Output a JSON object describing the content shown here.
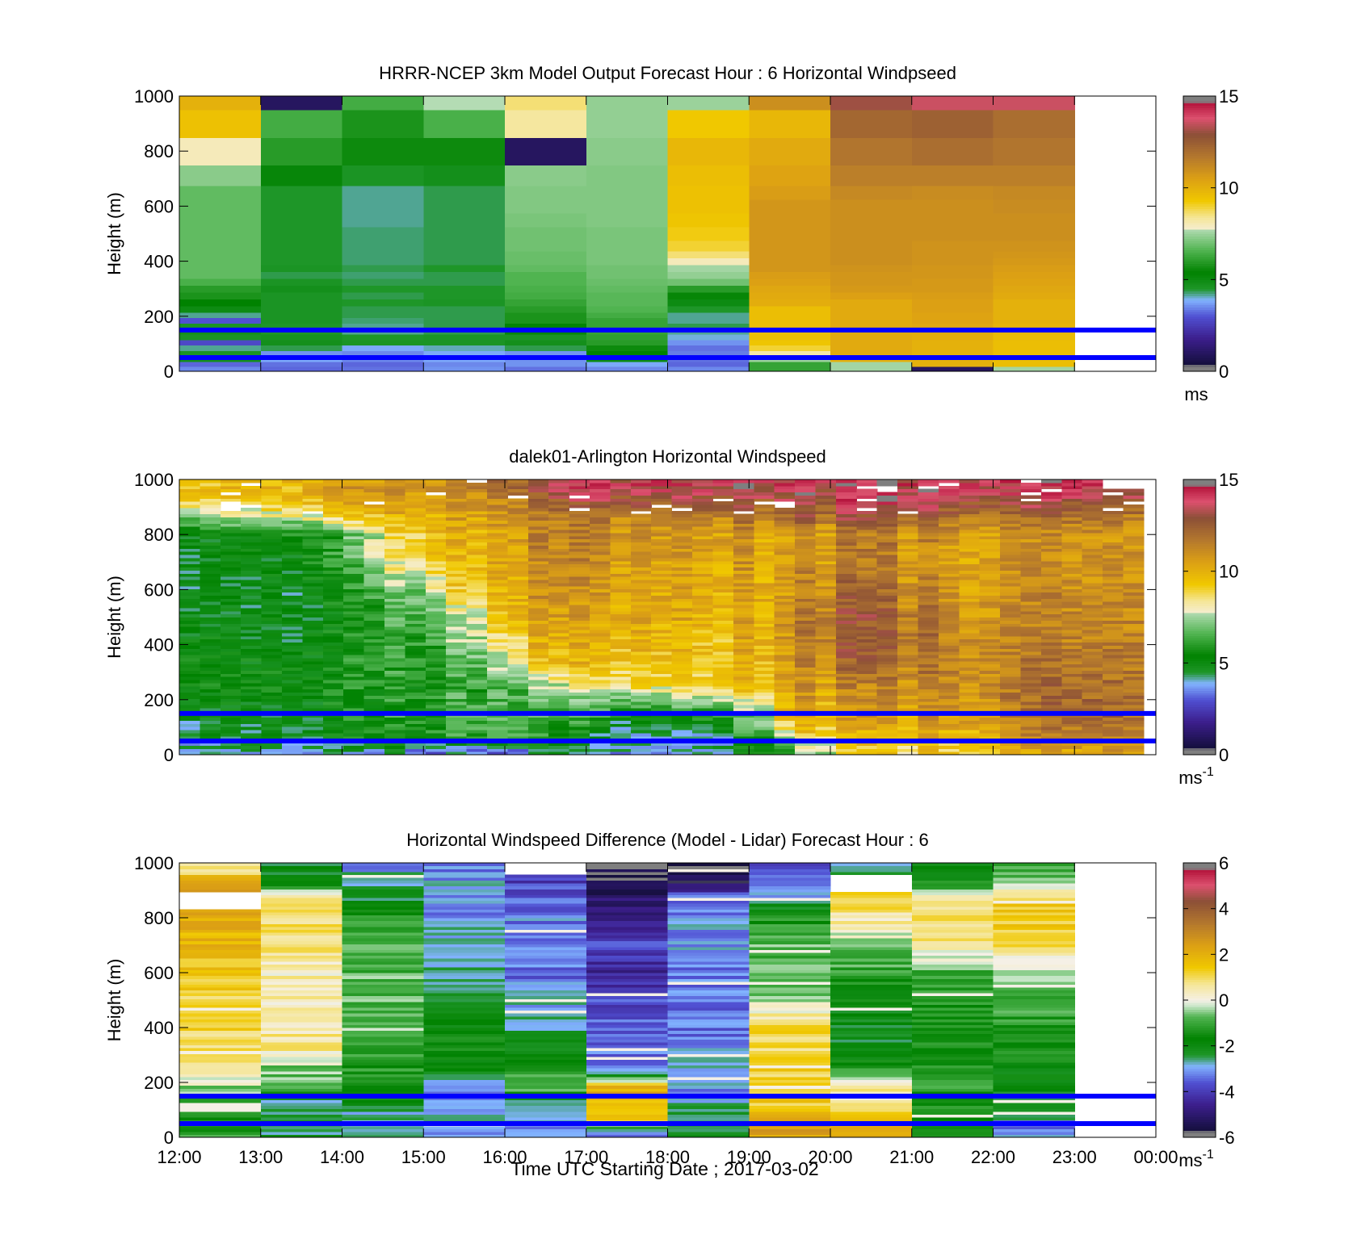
{
  "figure": {
    "xlabel": "Time UTC  Starting Date ; 2017-03-02"
  },
  "colormaps": {
    "windspeed": [
      [
        0,
        "#7f7f7f"
      ],
      [
        0.02,
        "#7f7f7f"
      ],
      [
        0.025,
        "#140f3c"
      ],
      [
        0.12,
        "#3c1e8c"
      ],
      [
        0.2,
        "#5050d2"
      ],
      [
        0.26,
        "#82b4ff"
      ],
      [
        0.3,
        "#1e9628"
      ],
      [
        0.36,
        "#008200"
      ],
      [
        0.44,
        "#50b450"
      ],
      [
        0.52,
        "#b4dcb4"
      ],
      [
        0.5,
        "#c8e6c8"
      ],
      [
        0.5,
        "#f5f0e6"
      ],
      [
        0.56,
        "#f5e696"
      ],
      [
        0.62,
        "#f0c800"
      ],
      [
        0.7,
        "#dca014"
      ],
      [
        0.78,
        "#b4782d"
      ],
      [
        0.86,
        "#8c5037"
      ],
      [
        0.92,
        "#dc506e"
      ],
      [
        0.975,
        "#b4143c"
      ],
      [
        0.98,
        "#7f7f7f"
      ],
      [
        1.0,
        "#7f7f7f"
      ]
    ],
    "difference": [
      [
        0,
        "#7f7f7f"
      ],
      [
        0.02,
        "#7f7f7f"
      ],
      [
        0.025,
        "#140f3c"
      ],
      [
        0.12,
        "#3c1e8c"
      ],
      [
        0.2,
        "#5050d2"
      ],
      [
        0.26,
        "#82b4ff"
      ],
      [
        0.3,
        "#1e9628"
      ],
      [
        0.36,
        "#008200"
      ],
      [
        0.44,
        "#50b450"
      ],
      [
        0.48,
        "#c8e6c8"
      ],
      [
        0.5,
        "#f5f0e6"
      ],
      [
        0.56,
        "#f5e696"
      ],
      [
        0.62,
        "#f0c800"
      ],
      [
        0.7,
        "#dca014"
      ],
      [
        0.78,
        "#b4782d"
      ],
      [
        0.86,
        "#8c5037"
      ],
      [
        0.92,
        "#dc506e"
      ],
      [
        0.975,
        "#b4143c"
      ],
      [
        0.98,
        "#7f7f7f"
      ],
      [
        1.0,
        "#7f7f7f"
      ]
    ]
  },
  "chart_data": [
    {
      "type": "heatmap",
      "id": "model",
      "title": "HRRR-NCEP 3km Model Output   Forecast Hour : 6 Horizontal Windpseed",
      "ylabel": "Height (m)",
      "xlim": [
        12,
        24
      ],
      "ylim": [
        0,
        1000
      ],
      "yticks": [
        0,
        200,
        400,
        600,
        800,
        1000
      ],
      "xticks": [
        12,
        13,
        14,
        15,
        16,
        17,
        18,
        19,
        20,
        21,
        22,
        23,
        24
      ],
      "data_x_range": [
        12,
        23
      ],
      "colorbar": {
        "cmap": "windspeed",
        "range": [
          0,
          15
        ],
        "ticks": [
          0,
          5,
          10,
          15
        ],
        "unit": "ms",
        "unit_superscript": ""
      },
      "levels_m": [
        10,
        25,
        45,
        65,
        85,
        105,
        125,
        145,
        165,
        185,
        205,
        225,
        250,
        275,
        300,
        325,
        350,
        375,
        400,
        425,
        450,
        500,
        550,
        600,
        650,
        700,
        800,
        900,
        1000
      ],
      "hlines": [
        50,
        150
      ],
      "values": [
        [
          3.5,
          3.2,
          4.8,
          4.6,
          4.2,
          2.8,
          4.6,
          4.8,
          4.6,
          3.0,
          4.2,
          5.0,
          5.4,
          5.8,
          6.0,
          6.5,
          6.8,
          6.8,
          6.8,
          6.8,
          6.8,
          6.8,
          6.8,
          6.8,
          6.8,
          7.3,
          8.0,
          9.5,
          10.0
        ],
        [
          3.2,
          3.3,
          3.8,
          3.6,
          4.4,
          4.8,
          4.7,
          4.5,
          4.5,
          4.6,
          4.6,
          4.6,
          4.6,
          4.6,
          4.8,
          4.6,
          4.4,
          4.6,
          4.5,
          4.5,
          4.5,
          4.5,
          4.5,
          4.5,
          4.5,
          5.2,
          6.0,
          6.4,
          1.0
        ],
        [
          3.3,
          3.2,
          3.5,
          3.5,
          3.8,
          4.6,
          4.5,
          4.2,
          4.2,
          4.3,
          4.4,
          4.4,
          4.5,
          4.4,
          4.5,
          4.4,
          4.3,
          4.4,
          4.3,
          4.3,
          4.3,
          4.3,
          4.2,
          4.2,
          4.2,
          4.6,
          5.6,
          5.8,
          6.4
        ],
        [
          3.6,
          3.5,
          3.8,
          3.8,
          4.1,
          4.6,
          4.6,
          4.4,
          4.4,
          4.4,
          4.4,
          4.4,
          4.6,
          4.5,
          4.5,
          4.4,
          4.4,
          4.5,
          4.4,
          4.4,
          4.4,
          4.4,
          4.4,
          4.4,
          4.4,
          4.8,
          5.6,
          6.5,
          7.8
        ],
        [
          3.3,
          3.6,
          3.6,
          3.6,
          4.4,
          4.8,
          4.6,
          5.2,
          5.3,
          5.8,
          5.8,
          6.0,
          6.2,
          6.4,
          6.5,
          6.6,
          6.6,
          6.8,
          6.9,
          6.9,
          7.0,
          7.0,
          7.1,
          7.2,
          7.2,
          7.3,
          1.0,
          8.3,
          8.6
        ],
        [
          3.5,
          3.8,
          5.0,
          5.4,
          5.6,
          6.0,
          6.1,
          6.2,
          6.2,
          6.2,
          6.4,
          6.6,
          6.7,
          6.7,
          6.8,
          6.9,
          7.0,
          7.0,
          7.1,
          7.1,
          7.1,
          7.1,
          7.2,
          7.2,
          7.2,
          7.2,
          7.3,
          7.4,
          7.4
        ],
        [
          3.5,
          3.2,
          3.3,
          3.4,
          3.3,
          3.6,
          4.0,
          4.2,
          4.4,
          4.2,
          4.2,
          4.5,
          5.0,
          5.5,
          6.0,
          7.0,
          7.4,
          7.6,
          8.0,
          8.6,
          9.0,
          9.2,
          9.4,
          9.5,
          9.5,
          9.6,
          9.8,
          9.3,
          7.5
        ],
        [
          6.2,
          6.2,
          7.5,
          8.2,
          9.0,
          9.4,
          9.6,
          9.6,
          9.6,
          9.6,
          9.6,
          9.6,
          10.1,
          10.2,
          10.3,
          10.5,
          10.6,
          10.8,
          10.8,
          10.8,
          10.8,
          10.8,
          10.8,
          10.8,
          10.6,
          10.4,
          10.2,
          9.8,
          11.0
        ],
        [
          7.6,
          7.6,
          10.0,
          10.2,
          10.2,
          10.2,
          10.2,
          10.2,
          10.2,
          10.2,
          10.2,
          10.2,
          10.2,
          10.5,
          10.7,
          10.8,
          10.8,
          10.9,
          11.0,
          11.0,
          11.0,
          11.0,
          11.0,
          11.0,
          11.2,
          11.5,
          11.8,
          12.2,
          13.1
        ],
        [
          1.0,
          10.0,
          10.0,
          10.0,
          10.0,
          10.0,
          10.1,
          10.2,
          10.3,
          10.4,
          10.4,
          10.5,
          10.5,
          10.6,
          10.7,
          10.7,
          10.8,
          10.8,
          10.9,
          10.9,
          10.9,
          11.0,
          11.0,
          11.0,
          11.1,
          11.5,
          12.0,
          12.4,
          13.6
        ],
        [
          7.6,
          9.6,
          9.6,
          9.6,
          9.6,
          9.6,
          9.7,
          9.8,
          9.9,
          10.0,
          10.0,
          10.0,
          10.0,
          10.2,
          10.3,
          10.4,
          10.5,
          10.6,
          10.7,
          10.8,
          10.9,
          11.0,
          11.0,
          11.1,
          11.2,
          11.5,
          11.8,
          12.0,
          13.6
        ]
      ]
    },
    {
      "type": "heatmap",
      "id": "lidar",
      "title": "dalek01-Arlington  Horizontal Windspeed",
      "ylabel": "Height (m)",
      "xlim": [
        12,
        24
      ],
      "ylim": [
        0,
        1000
      ],
      "yticks": [
        0,
        200,
        400,
        600,
        800,
        1000
      ],
      "xticks": [
        12,
        13,
        14,
        15,
        16,
        17,
        18,
        19,
        20,
        21,
        22,
        23,
        24
      ],
      "data_x_range": [
        12,
        23.85
      ],
      "colorbar": {
        "cmap": "windspeed",
        "range": [
          0,
          15
        ],
        "ticks": [
          0,
          5,
          10,
          15
        ],
        "unit": "ms",
        "unit_superscript": "-1"
      },
      "hlines": [
        50,
        150
      ],
      "profile_heights_m": [
        20,
        60,
        120,
        180,
        250,
        320,
        400,
        500,
        600,
        700,
        800,
        870,
        930,
        980
      ],
      "profile_times_h": [
        12.0,
        13.0,
        14.0,
        15.0,
        15.5,
        16.0,
        16.5,
        17.0,
        17.5,
        18.0,
        18.5,
        19.0,
        19.5,
        20.0,
        20.5,
        21.0,
        21.5,
        22.0,
        22.5,
        23.0,
        23.85
      ],
      "profiles": [
        [
          4.0,
          4.6,
          4.9,
          5.4,
          5.6,
          5.8,
          5.6,
          5.2,
          5.0,
          5.0,
          5.2,
          7.6,
          9.5,
          9.5
        ],
        [
          4.2,
          5.0,
          5.0,
          5.2,
          5.5,
          5.4,
          5.2,
          5.0,
          5.0,
          5.0,
          5.6,
          8.0,
          9.5,
          9.8
        ],
        [
          4.2,
          5.2,
          5.3,
          5.4,
          5.6,
          5.6,
          5.4,
          5.2,
          5.4,
          6.0,
          6.2,
          9.0,
          10.2,
          10.4
        ],
        [
          3.8,
          5.8,
          5.9,
          6.0,
          5.8,
          6.0,
          6.2,
          6.6,
          7.6,
          9.2,
          9.8,
          10.0,
          10.6,
          11.0
        ],
        [
          3.4,
          6.4,
          6.6,
          6.6,
          6.2,
          6.6,
          7.2,
          7.8,
          9.4,
          9.8,
          10.0,
          10.4,
          11.0,
          11.5
        ],
        [
          3.4,
          7.0,
          6.8,
          6.6,
          6.8,
          8.0,
          8.4,
          9.6,
          10.2,
          10.4,
          10.6,
          11.0,
          11.4,
          12.5
        ],
        [
          4.0,
          5.0,
          5.6,
          6.2,
          7.0,
          8.8,
          9.6,
          10.2,
          10.6,
          10.8,
          11.0,
          11.2,
          12.0,
          13.0
        ],
        [
          4.2,
          4.2,
          5.6,
          6.4,
          7.8,
          9.4,
          9.6,
          10.0,
          10.4,
          10.8,
          11.0,
          11.4,
          12.8,
          13.5
        ],
        [
          4.2,
          4.2,
          5.0,
          6.6,
          8.8,
          9.6,
          10.0,
          10.4,
          10.6,
          10.8,
          11.0,
          11.6,
          13.2,
          13.8
        ],
        [
          4.2,
          4.2,
          5.2,
          6.8,
          9.0,
          9.8,
          10.0,
          10.4,
          10.6,
          10.8,
          11.0,
          11.8,
          13.4,
          14.0
        ],
        [
          4.4,
          4.4,
          5.6,
          7.0,
          9.2,
          9.6,
          9.8,
          10.2,
          10.4,
          10.6,
          11.0,
          11.8,
          13.4,
          14.0
        ],
        [
          5.0,
          5.4,
          6.4,
          7.4,
          9.4,
          9.6,
          9.8,
          10.0,
          10.2,
          10.4,
          10.6,
          11.6,
          13.2,
          13.8
        ],
        [
          6.4,
          7.8,
          9.6,
          10.2,
          10.4,
          10.6,
          10.8,
          10.8,
          10.6,
          10.4,
          10.4,
          11.8,
          13.2,
          14.0
        ],
        [
          8.2,
          9.2,
          10.0,
          10.4,
          10.8,
          11.4,
          12.0,
          12.0,
          11.6,
          11.0,
          10.8,
          12.4,
          13.6,
          14.2
        ],
        [
          8.8,
          9.6,
          10.2,
          10.6,
          11.0,
          11.8,
          12.6,
          12.4,
          12.0,
          11.4,
          11.4,
          12.6,
          13.6,
          14.2
        ],
        [
          9.2,
          9.8,
          10.4,
          10.8,
          11.2,
          11.8,
          12.0,
          11.8,
          11.4,
          11.0,
          11.2,
          12.8,
          13.8,
          14.4
        ],
        [
          9.4,
          10.0,
          10.6,
          11.0,
          11.4,
          11.6,
          11.6,
          11.4,
          11.0,
          10.8,
          11.0,
          12.4,
          13.6,
          14.2
        ],
        [
          9.6,
          10.4,
          11.0,
          11.4,
          11.6,
          11.6,
          11.4,
          11.2,
          11.0,
          10.8,
          10.8,
          12.2,
          13.4,
          14.0
        ],
        [
          9.8,
          10.8,
          11.4,
          11.6,
          11.6,
          11.4,
          11.2,
          11.0,
          10.8,
          10.6,
          10.6,
          12.0,
          13.2,
          13.8
        ],
        [
          10.0,
          11.0,
          11.6,
          11.8,
          11.6,
          11.4,
          11.0,
          10.8,
          10.6,
          10.4,
          10.4,
          11.6,
          12.8,
          13.6
        ],
        [
          10.2,
          11.0,
          11.4,
          11.4,
          11.2,
          11.0,
          10.8,
          10.6,
          10.4,
          10.2,
          10.2,
          11.0,
          12.4,
          13.2
        ]
      ]
    },
    {
      "type": "heatmap",
      "id": "difference",
      "title": "Horizontal Windspeed Difference (Model - Lidar) Forecast Hour : 6",
      "ylabel": "Height (m)",
      "xlim": [
        12,
        24
      ],
      "ylim": [
        0,
        1000
      ],
      "yticks": [
        0,
        200,
        400,
        600,
        800,
        1000
      ],
      "xticks": [
        12,
        13,
        14,
        15,
        16,
        17,
        18,
        19,
        20,
        21,
        22,
        23,
        24
      ],
      "xticklabels": [
        "12:00",
        "13:00",
        "14:00",
        "15:00",
        "16:00",
        "17:00",
        "18:00",
        "19:00",
        "20:00",
        "21:00",
        "22:00",
        "23:00",
        "00:00"
      ],
      "data_x_range": [
        12,
        23
      ],
      "colorbar": {
        "cmap": "difference",
        "range": [
          -6,
          6
        ],
        "ticks": [
          -6,
          -4,
          -2,
          0,
          2,
          4,
          6
        ],
        "unit": "ms",
        "unit_superscript": "-1"
      },
      "hlines": [
        50,
        150
      ],
      "profile_heights_m": [
        20,
        60,
        120,
        180,
        250,
        320,
        400,
        500,
        600,
        700,
        800,
        870,
        930,
        980
      ],
      "columns": [
        [
          -1.0,
          -1.6,
          -1.2,
          -0.4,
          0.6,
          0.8,
          1.2,
          1.2,
          1.4,
          1.8,
          2.0,
          null,
          2.2,
          0.8
        ],
        [
          -2.4,
          -2.6,
          -2.8,
          -0.8,
          -0.6,
          0.6,
          0.6,
          0.4,
          0.4,
          0.8,
          1.0,
          1.2,
          -1.8,
          -2.2
        ],
        [
          -2.8,
          -2.8,
          -2.4,
          -1.4,
          -1.2,
          -1.0,
          -0.6,
          -0.8,
          -0.8,
          -0.8,
          -1.2,
          -2.2,
          -2.8,
          -3.0
        ],
        [
          -3.4,
          -2.8,
          -3.2,
          -3.0,
          -2.0,
          -1.6,
          -1.8,
          -2.0,
          -2.6,
          -2.8,
          -3.0,
          -3.2,
          -3.0,
          -3.2
        ],
        [
          -3.2,
          -3.0,
          -2.6,
          -0.6,
          -1.4,
          -2.2,
          -2.6,
          -3.0,
          -3.4,
          -3.2,
          -3.2,
          -3.6,
          -3.9,
          null
        ],
        [
          -3.2,
          1.6,
          1.8,
          2.2,
          -3.4,
          -3.4,
          -3.6,
          -3.8,
          -4.4,
          -3.8,
          -4.6,
          -5.0,
          -5.4,
          -5.8
        ],
        [
          -2.4,
          -2.2,
          -2.6,
          -3.2,
          -3.0,
          -3.2,
          -3.4,
          -3.4,
          -3.2,
          -3.0,
          -3.2,
          -3.2,
          -5.2,
          -6.0
        ],
        [
          2.4,
          2.8,
          1.4,
          1.2,
          1.2,
          1.0,
          1.2,
          -0.4,
          -0.8,
          -0.8,
          -1.4,
          -2.8,
          -3.0,
          -4.0
        ],
        [
          2.0,
          1.8,
          0.4,
          0.6,
          -1.2,
          -2.0,
          -2.2,
          -1.8,
          -1.2,
          -0.4,
          0.6,
          1.2,
          null,
          -2.4
        ],
        [
          -1.8,
          -1.6,
          -1.4,
          -1.2,
          -1.4,
          -1.6,
          -1.4,
          -1.2,
          -1.0,
          0.6,
          1.0,
          0.6,
          -1.4,
          -2.2
        ],
        [
          -3.2,
          -3.0,
          -2.4,
          -2.0,
          -1.8,
          -1.4,
          -1.2,
          -1.0,
          -0.6,
          1.0,
          1.4,
          1.2,
          -0.8,
          -1.0
        ]
      ]
    }
  ]
}
